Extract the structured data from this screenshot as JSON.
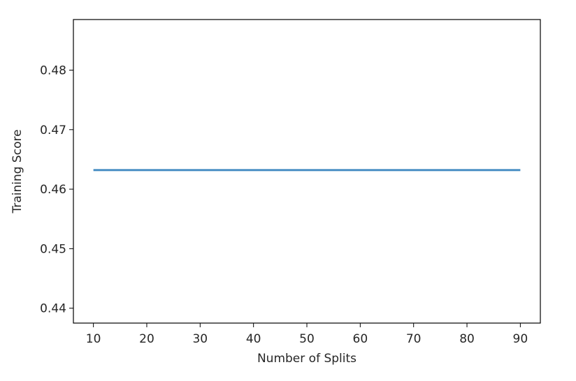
{
  "chart_data": {
    "type": "line",
    "title": "",
    "xlabel": "Number of Splits",
    "ylabel": "Training Score",
    "x": [
      10,
      20,
      30,
      40,
      50,
      60,
      70,
      80,
      90
    ],
    "series": [
      {
        "values": [
          0.4632,
          0.4632,
          0.4632,
          0.4632,
          0.4632,
          0.4632,
          0.4632,
          0.4632,
          0.4632
        ],
        "color": "#4a8fc4"
      }
    ],
    "xlim": [
      6.25,
      93.75
    ],
    "ylim": [
      0.4375,
      0.4885
    ],
    "xticks": [
      10,
      20,
      30,
      40,
      50,
      60,
      70,
      80,
      90
    ],
    "xtick_labels": [
      "10",
      "20",
      "30",
      "40",
      "50",
      "60",
      "70",
      "80",
      "90"
    ],
    "yticks": [
      0.44,
      0.45,
      0.46,
      0.47,
      0.48
    ],
    "ytick_labels": [
      "0.44",
      "0.45",
      "0.46",
      "0.47",
      "0.48"
    ],
    "grid": false,
    "legend": "none"
  }
}
